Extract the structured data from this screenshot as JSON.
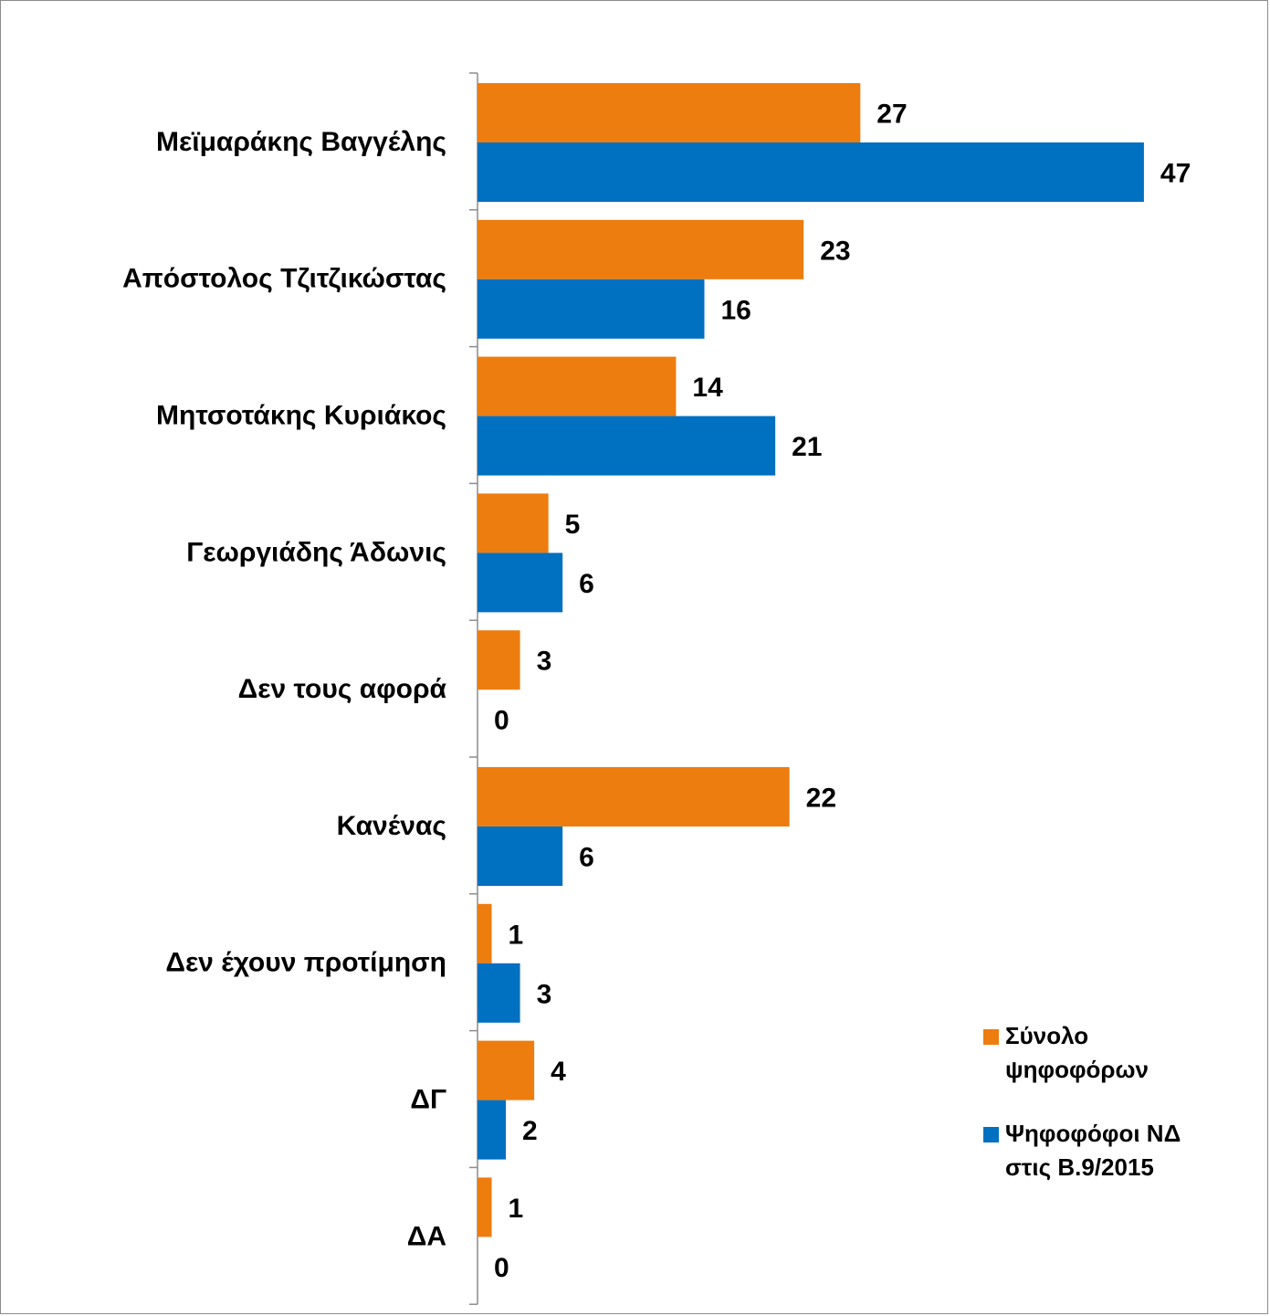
{
  "chart_data": {
    "type": "bar",
    "orientation": "horizontal",
    "categories": [
      "Μεϊμαράκης Βαγγέλης",
      "Απόστολος Τζιτζικώστας",
      "Μητσοτάκης Κυριάκος",
      "Γεωργιάδης Άδωνις",
      "Δεν τους αφορά",
      "Κανένας",
      "Δεν έχουν προτίμηση",
      "ΔΓ",
      "ΔΑ"
    ],
    "series": [
      {
        "name": "Σύνολο ψηφοφόρων",
        "legend_lines": [
          "Σύνολο",
          "ψηφοφόρων"
        ],
        "color": "#ED7D0F",
        "values": [
          27,
          23,
          14,
          5,
          3,
          22,
          1,
          4,
          1
        ]
      },
      {
        "name": "Ψηφοφόφοι ΝΔ στις Β.9/2015",
        "legend_lines": [
          "Ψηφοφόφοι ΝΔ",
          "στις Β.9/2015"
        ],
        "color": "#0070C0",
        "values": [
          47,
          16,
          21,
          6,
          0,
          6,
          3,
          2,
          0
        ]
      }
    ],
    "xlim": [
      0,
      50
    ],
    "grid": false,
    "legend_position": "bottom-right",
    "data_labels": true
  }
}
